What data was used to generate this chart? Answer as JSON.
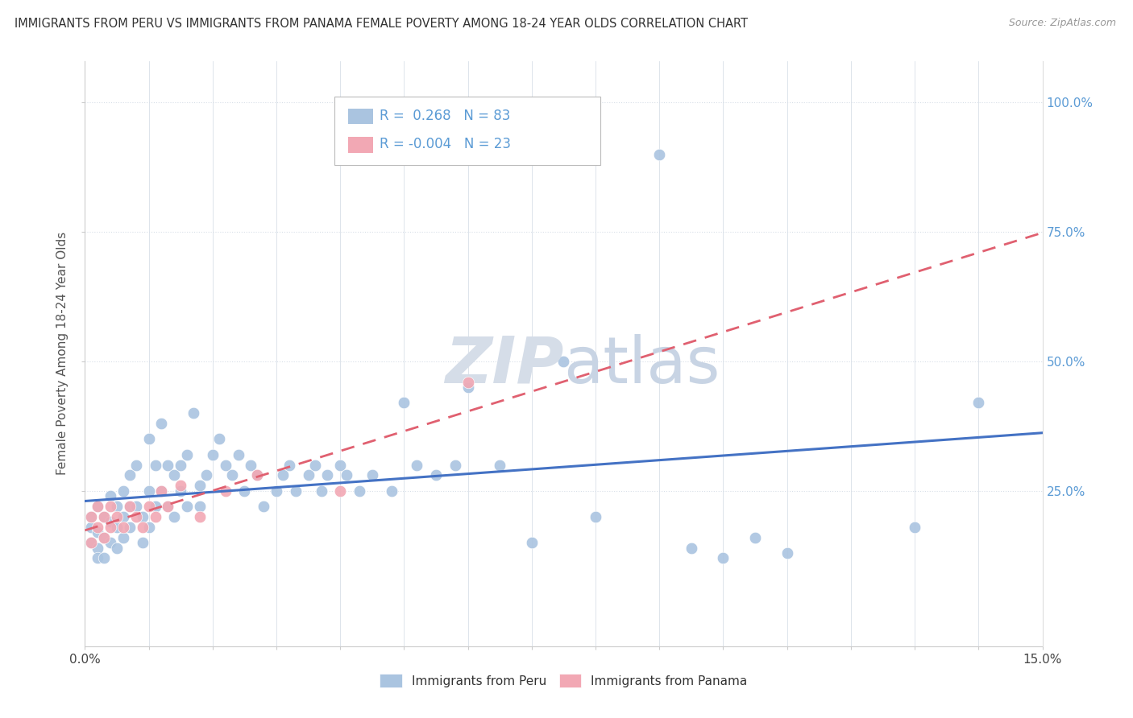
{
  "title": "IMMIGRANTS FROM PERU VS IMMIGRANTS FROM PANAMA FEMALE POVERTY AMONG 18-24 YEAR OLDS CORRELATION CHART",
  "source_text": "Source: ZipAtlas.com",
  "ylabel": "Female Poverty Among 18-24 Year Olds",
  "xlim": [
    0.0,
    0.15
  ],
  "ylim": [
    -0.05,
    1.08
  ],
  "xtick_labels": [
    "0.0%",
    "",
    "",
    "",
    "",
    "",
    "",
    "",
    "",
    "",
    "",
    "",
    "",
    "",
    "",
    "15.0%"
  ],
  "xtick_values": [
    0.0,
    0.01,
    0.02,
    0.03,
    0.04,
    0.05,
    0.06,
    0.07,
    0.08,
    0.09,
    0.1,
    0.11,
    0.12,
    0.13,
    0.14,
    0.15
  ],
  "ytick_labels": [
    "100.0%",
    "75.0%",
    "50.0%",
    "25.0%"
  ],
  "ytick_values": [
    1.0,
    0.75,
    0.5,
    0.25
  ],
  "peru_R": 0.268,
  "peru_N": 83,
  "panama_R": -0.004,
  "panama_N": 23,
  "peru_color": "#aac4e0",
  "panama_color": "#f2a8b4",
  "peru_line_color": "#4472c4",
  "panama_line_color": "#e06070",
  "background_color": "#ffffff",
  "grid_color": "#d8dfe8",
  "watermark_color": "#d5dde8",
  "peru_scatter_x": [
    0.001,
    0.001,
    0.001,
    0.002,
    0.002,
    0.002,
    0.002,
    0.003,
    0.003,
    0.003,
    0.004,
    0.004,
    0.004,
    0.005,
    0.005,
    0.005,
    0.006,
    0.006,
    0.006,
    0.007,
    0.007,
    0.007,
    0.008,
    0.008,
    0.009,
    0.009,
    0.01,
    0.01,
    0.01,
    0.011,
    0.011,
    0.012,
    0.012,
    0.013,
    0.013,
    0.014,
    0.014,
    0.015,
    0.015,
    0.016,
    0.016,
    0.017,
    0.018,
    0.018,
    0.019,
    0.02,
    0.021,
    0.022,
    0.023,
    0.024,
    0.025,
    0.026,
    0.027,
    0.028,
    0.03,
    0.031,
    0.032,
    0.033,
    0.035,
    0.036,
    0.037,
    0.038,
    0.04,
    0.041,
    0.043,
    0.045,
    0.048,
    0.05,
    0.052,
    0.055,
    0.058,
    0.06,
    0.065,
    0.07,
    0.075,
    0.08,
    0.09,
    0.095,
    0.1,
    0.105,
    0.11,
    0.13,
    0.14
  ],
  "peru_scatter_y": [
    0.18,
    0.15,
    0.2,
    0.22,
    0.17,
    0.14,
    0.12,
    0.2,
    0.16,
    0.12,
    0.24,
    0.19,
    0.15,
    0.22,
    0.18,
    0.14,
    0.25,
    0.2,
    0.16,
    0.28,
    0.22,
    0.18,
    0.3,
    0.22,
    0.2,
    0.15,
    0.35,
    0.25,
    0.18,
    0.3,
    0.22,
    0.38,
    0.25,
    0.3,
    0.22,
    0.28,
    0.2,
    0.3,
    0.25,
    0.32,
    0.22,
    0.4,
    0.26,
    0.22,
    0.28,
    0.32,
    0.35,
    0.3,
    0.28,
    0.32,
    0.25,
    0.3,
    0.28,
    0.22,
    0.25,
    0.28,
    0.3,
    0.25,
    0.28,
    0.3,
    0.25,
    0.28,
    0.3,
    0.28,
    0.25,
    0.28,
    0.25,
    0.42,
    0.3,
    0.28,
    0.3,
    0.45,
    0.3,
    0.15,
    0.5,
    0.2,
    0.9,
    0.14,
    0.12,
    0.16,
    0.13,
    0.18,
    0.42
  ],
  "panama_scatter_x": [
    0.001,
    0.001,
    0.002,
    0.002,
    0.003,
    0.003,
    0.004,
    0.004,
    0.005,
    0.006,
    0.007,
    0.008,
    0.009,
    0.01,
    0.011,
    0.012,
    0.013,
    0.015,
    0.018,
    0.022,
    0.027,
    0.04,
    0.06
  ],
  "panama_scatter_y": [
    0.2,
    0.15,
    0.22,
    0.18,
    0.2,
    0.16,
    0.22,
    0.18,
    0.2,
    0.18,
    0.22,
    0.2,
    0.18,
    0.22,
    0.2,
    0.25,
    0.22,
    0.26,
    0.2,
    0.25,
    0.28,
    0.25,
    0.46
  ],
  "legend_peru_label": "Immigrants from Peru",
  "legend_panama_label": "Immigrants from Panama"
}
